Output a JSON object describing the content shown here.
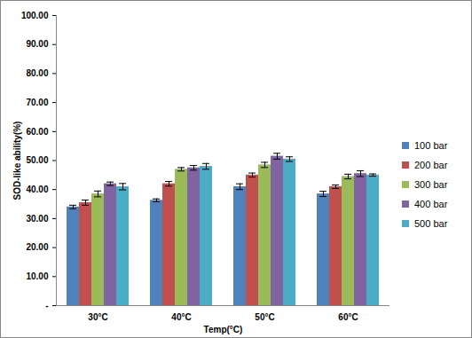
{
  "chart_data": {
    "type": "bar",
    "x_label": "Temp(°C)",
    "y_label": "SOD-like ability(%)",
    "categories": [
      "30°C",
      "40°C",
      "50°C",
      "60°C"
    ],
    "series": [
      {
        "name": "100 bar",
        "color": "#4f81bd",
        "values": [
          34.0,
          36.3,
          41.0,
          38.5
        ],
        "errors": [
          0.6,
          0.5,
          1.0,
          0.9
        ]
      },
      {
        "name": "200 bar",
        "color": "#c0504d",
        "values": [
          35.5,
          42.0,
          45.0,
          41.0
        ],
        "errors": [
          0.9,
          0.8,
          0.7,
          0.6
        ]
      },
      {
        "name": "300 bar",
        "color": "#9bbb59",
        "values": [
          38.5,
          47.0,
          48.5,
          44.5
        ],
        "errors": [
          1.0,
          0.6,
          0.9,
          0.8
        ]
      },
      {
        "name": "400 bar",
        "color": "#8064a2",
        "values": [
          42.0,
          47.5,
          51.5,
          45.5
        ],
        "errors": [
          0.6,
          0.8,
          1.0,
          1.0
        ]
      },
      {
        "name": "500 bar",
        "color": "#4bacc6",
        "values": [
          41.0,
          48.0,
          50.5,
          45.0
        ],
        "errors": [
          1.1,
          1.0,
          0.8,
          0.4
        ]
      }
    ],
    "ylim": [
      0,
      100
    ],
    "yticks": [
      {
        "value": 0,
        "label": "-"
      },
      {
        "value": 10,
        "label": "10.00"
      },
      {
        "value": 20,
        "label": "20.00"
      },
      {
        "value": 30,
        "label": "30.00"
      },
      {
        "value": 40,
        "label": "40.00"
      },
      {
        "value": 50,
        "label": "50.00"
      },
      {
        "value": 60,
        "label": "60.00"
      },
      {
        "value": 70,
        "label": "70.00"
      },
      {
        "value": 80,
        "label": "80.00"
      },
      {
        "value": 90,
        "label": "90.00"
      },
      {
        "value": 100,
        "label": "100.00"
      }
    ],
    "grid": false,
    "legend": "right"
  }
}
